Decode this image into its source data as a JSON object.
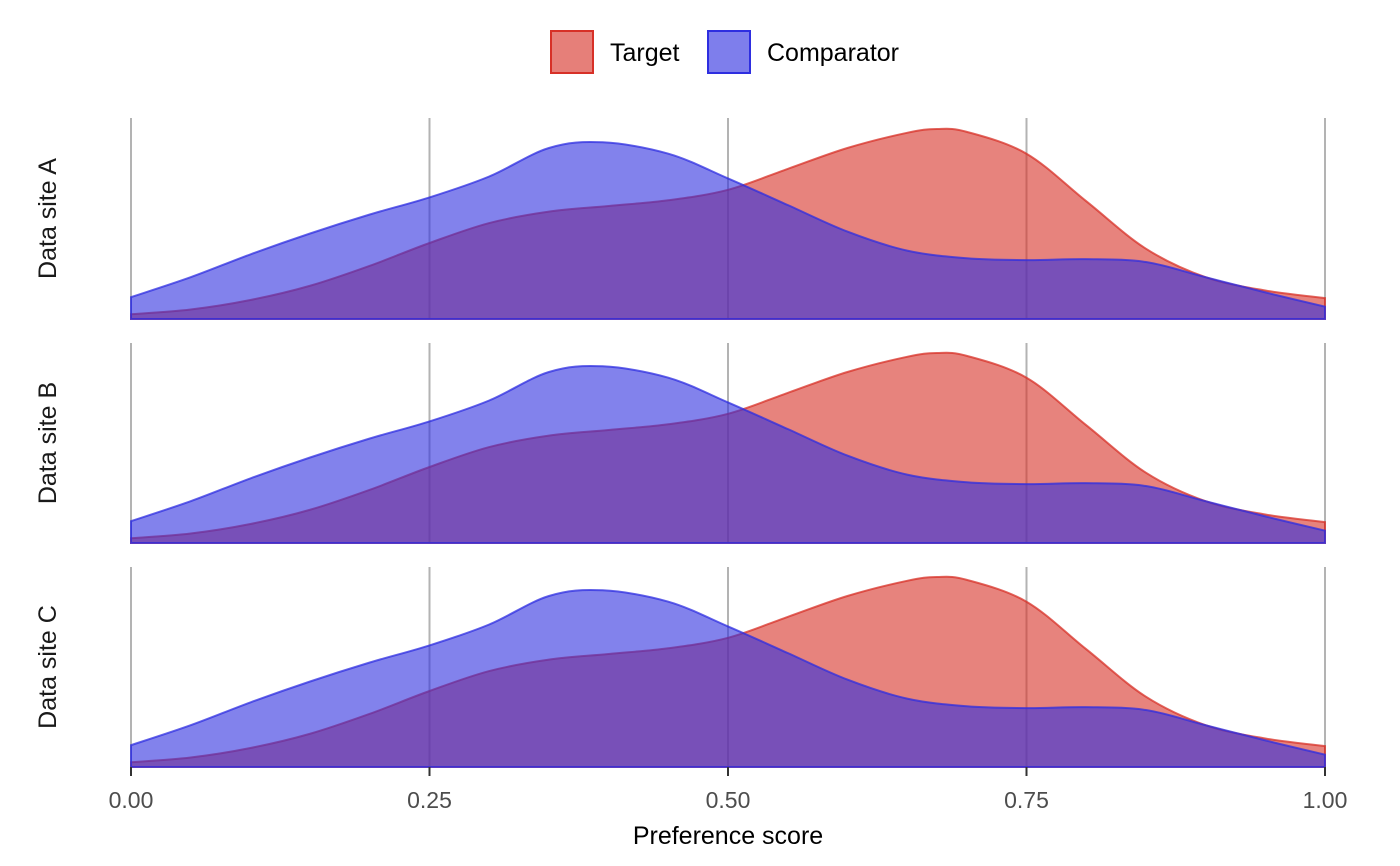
{
  "chart_data": {
    "type": "area",
    "subtype": "faceted density",
    "xlabel": "Preference score",
    "xlim": [
      0,
      1
    ],
    "xticks": [
      0,
      0.25,
      0.5,
      0.75,
      1.0
    ],
    "xtick_labels": [
      "0.00",
      "0.25",
      "0.50",
      "0.75",
      "1.00"
    ],
    "grid": "vertical major lines",
    "legend": {
      "position": "top",
      "entries": [
        "Target",
        "Comparator"
      ]
    },
    "colors": {
      "Target": "#d73027",
      "Comparator": "#2e2ee0",
      "overlap": "#7030a0",
      "grid": "#b3b3b3"
    },
    "series": [
      {
        "name": "Target",
        "x": [
          0,
          0.05,
          0.1,
          0.15,
          0.2,
          0.25,
          0.3,
          0.35,
          0.4,
          0.45,
          0.5,
          0.55,
          0.6,
          0.65,
          0.675,
          0.7,
          0.75,
          0.8,
          0.85,
          0.9,
          0.95,
          1.0
        ],
        "y": [
          0.025,
          0.05,
          0.1,
          0.175,
          0.28,
          0.4,
          0.505,
          0.565,
          0.595,
          0.625,
          0.68,
          0.79,
          0.9,
          0.98,
          1.0,
          0.985,
          0.87,
          0.62,
          0.37,
          0.22,
          0.15,
          0.11
        ]
      },
      {
        "name": "Comparator",
        "x": [
          0,
          0.05,
          0.1,
          0.15,
          0.2,
          0.25,
          0.3,
          0.35,
          0.395,
          0.45,
          0.5,
          0.55,
          0.6,
          0.65,
          0.7,
          0.75,
          0.8,
          0.85,
          0.9,
          0.95,
          1.0
        ],
        "y": [
          0.115,
          0.22,
          0.34,
          0.45,
          0.55,
          0.64,
          0.75,
          0.9,
          0.93,
          0.87,
          0.74,
          0.6,
          0.46,
          0.36,
          0.32,
          0.31,
          0.315,
          0.3,
          0.22,
          0.14,
          0.065
        ]
      }
    ],
    "facets": [
      "Data site A",
      "Data site B",
      "Data site C"
    ]
  }
}
